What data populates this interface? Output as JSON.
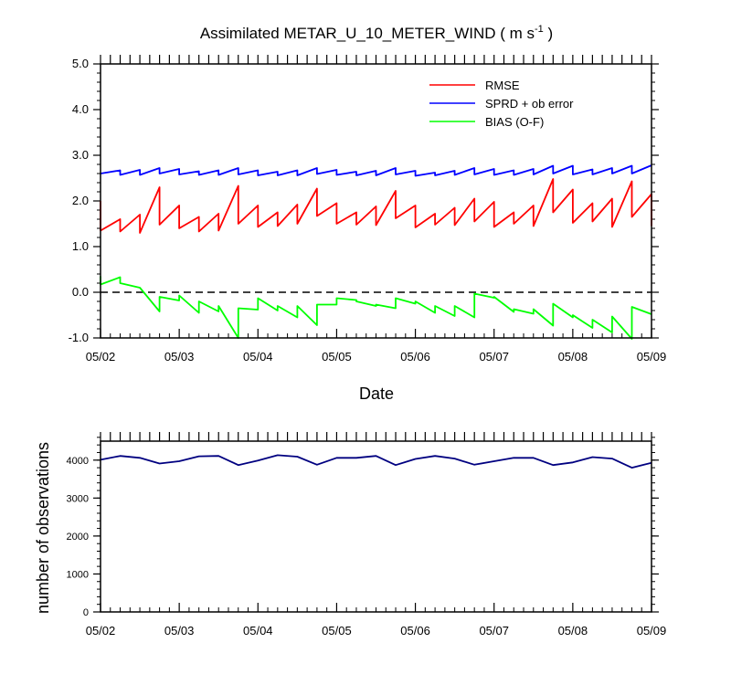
{
  "chart_data": [
    {
      "type": "line",
      "title": "Assimilated METAR_U_10_METER_WIND ( m s",
      "title_sup": "-1",
      "title_close": " )",
      "xlabel": "Date",
      "ylabel": "",
      "ylim": [
        -1.0,
        5.0
      ],
      "yticks": [
        -1.0,
        0.0,
        1.0,
        2.0,
        3.0,
        4.0,
        5.0
      ],
      "ytick_labels": [
        "-1.0",
        "0.0",
        "1.0",
        "2.0",
        "3.0",
        "4.0",
        "5.0"
      ],
      "xlim": [
        0,
        7
      ],
      "xticks": [
        0,
        1,
        2,
        3,
        4,
        5,
        6,
        7
      ],
      "xtick_labels": [
        "05/02",
        "05/03",
        "05/04",
        "05/05",
        "05/06",
        "05/07",
        "05/08",
        "05/09"
      ],
      "zero_line": true,
      "legend": {
        "placement": "top-right"
      },
      "series": [
        {
          "name": "RMSE",
          "color": "#ff0000",
          "points": [
            [
              0,
              2.0
            ],
            [
              0,
              1.35
            ],
            [
              0.25,
              1.6
            ],
            [
              0.25,
              1.33
            ],
            [
              0.5,
              1.7
            ],
            [
              0.5,
              1.3
            ],
            [
              0.75,
              2.3
            ],
            [
              0.75,
              1.48
            ],
            [
              1,
              1.9
            ],
            [
              1,
              1.4
            ],
            [
              1.25,
              1.65
            ],
            [
              1.25,
              1.33
            ],
            [
              1.5,
              1.72
            ],
            [
              1.5,
              1.35
            ],
            [
              1.75,
              2.33
            ],
            [
              1.75,
              1.5
            ],
            [
              2,
              1.9
            ],
            [
              2,
              1.43
            ],
            [
              2.25,
              1.75
            ],
            [
              2.25,
              1.45
            ],
            [
              2.5,
              1.92
            ],
            [
              2.5,
              1.5
            ],
            [
              2.75,
              2.27
            ],
            [
              2.75,
              1.67
            ],
            [
              3,
              1.95
            ],
            [
              3,
              1.5
            ],
            [
              3.25,
              1.75
            ],
            [
              3.25,
              1.48
            ],
            [
              3.5,
              1.88
            ],
            [
              3.5,
              1.47
            ],
            [
              3.75,
              2.22
            ],
            [
              3.75,
              1.62
            ],
            [
              4,
              1.9
            ],
            [
              4,
              1.42
            ],
            [
              4.25,
              1.72
            ],
            [
              4.25,
              1.48
            ],
            [
              4.5,
              1.85
            ],
            [
              4.5,
              1.47
            ],
            [
              4.75,
              2.05
            ],
            [
              4.75,
              1.55
            ],
            [
              5,
              1.98
            ],
            [
              5,
              1.43
            ],
            [
              5.25,
              1.75
            ],
            [
              5.25,
              1.5
            ],
            [
              5.5,
              1.9
            ],
            [
              5.5,
              1.45
            ],
            [
              5.75,
              2.48
            ],
            [
              5.75,
              1.75
            ],
            [
              6,
              2.25
            ],
            [
              6,
              1.52
            ],
            [
              6.25,
              1.95
            ],
            [
              6.25,
              1.55
            ],
            [
              6.5,
              2.05
            ],
            [
              6.5,
              1.43
            ],
            [
              6.75,
              2.43
            ],
            [
              6.75,
              1.65
            ],
            [
              7,
              2.15
            ],
            [
              7,
              1.45
            ]
          ]
        },
        {
          "name": "SPRD + ob error",
          "color": "#0000ff",
          "points": [
            [
              0,
              2.6
            ],
            [
              0.25,
              2.67
            ],
            [
              0.25,
              2.57
            ],
            [
              0.5,
              2.68
            ],
            [
              0.5,
              2.57
            ],
            [
              0.75,
              2.72
            ],
            [
              0.75,
              2.6
            ],
            [
              1,
              2.7
            ],
            [
              1,
              2.58
            ],
            [
              1.25,
              2.65
            ],
            [
              1.25,
              2.57
            ],
            [
              1.5,
              2.67
            ],
            [
              1.5,
              2.57
            ],
            [
              1.75,
              2.72
            ],
            [
              1.75,
              2.58
            ],
            [
              2,
              2.67
            ],
            [
              2,
              2.56
            ],
            [
              2.25,
              2.64
            ],
            [
              2.25,
              2.56
            ],
            [
              2.5,
              2.67
            ],
            [
              2.5,
              2.56
            ],
            [
              2.75,
              2.72
            ],
            [
              2.75,
              2.59
            ],
            [
              3,
              2.68
            ],
            [
              3,
              2.57
            ],
            [
              3.25,
              2.64
            ],
            [
              3.25,
              2.56
            ],
            [
              3.5,
              2.66
            ],
            [
              3.5,
              2.56
            ],
            [
              3.75,
              2.72
            ],
            [
              3.75,
              2.58
            ],
            [
              4,
              2.66
            ],
            [
              4,
              2.55
            ],
            [
              4.25,
              2.62
            ],
            [
              4.25,
              2.56
            ],
            [
              4.5,
              2.66
            ],
            [
              4.5,
              2.57
            ],
            [
              4.75,
              2.72
            ],
            [
              4.75,
              2.58
            ],
            [
              5,
              2.7
            ],
            [
              5,
              2.57
            ],
            [
              5.25,
              2.67
            ],
            [
              5.25,
              2.57
            ],
            [
              5.5,
              2.7
            ],
            [
              5.5,
              2.58
            ],
            [
              5.75,
              2.77
            ],
            [
              5.75,
              2.6
            ],
            [
              6,
              2.77
            ],
            [
              6,
              2.58
            ],
            [
              6.25,
              2.69
            ],
            [
              6.25,
              2.58
            ],
            [
              6.5,
              2.72
            ],
            [
              6.5,
              2.6
            ],
            [
              6.75,
              2.77
            ],
            [
              6.75,
              2.6
            ],
            [
              7,
              2.78
            ]
          ]
        },
        {
          "name": "BIAS (O-F)",
          "color": "#00ff00",
          "points": [
            [
              0,
              0.35
            ],
            [
              0,
              0.17
            ],
            [
              0.25,
              0.33
            ],
            [
              0.25,
              0.2
            ],
            [
              0.5,
              0.1
            ],
            [
              0.75,
              -0.42
            ],
            [
              0.75,
              -0.1
            ],
            [
              1,
              -0.18
            ],
            [
              1,
              -0.07
            ],
            [
              1.25,
              -0.45
            ],
            [
              1.25,
              -0.2
            ],
            [
              1.5,
              -0.42
            ],
            [
              1.5,
              -0.3
            ],
            [
              1.75,
              -1.0
            ],
            [
              1.75,
              -0.35
            ],
            [
              2,
              -0.38
            ],
            [
              2,
              -0.13
            ],
            [
              2.25,
              -0.4
            ],
            [
              2.25,
              -0.3
            ],
            [
              2.5,
              -0.55
            ],
            [
              2.5,
              -0.3
            ],
            [
              2.75,
              -0.72
            ],
            [
              2.75,
              -0.27
            ],
            [
              3,
              -0.27
            ],
            [
              3,
              -0.13
            ],
            [
              3.25,
              -0.17
            ],
            [
              3.25,
              -0.2
            ],
            [
              3.5,
              -0.3
            ],
            [
              3.5,
              -0.27
            ],
            [
              3.75,
              -0.35
            ],
            [
              3.75,
              -0.13
            ],
            [
              4,
              -0.25
            ],
            [
              4,
              -0.2
            ],
            [
              4.25,
              -0.45
            ],
            [
              4.25,
              -0.3
            ],
            [
              4.5,
              -0.52
            ],
            [
              4.5,
              -0.3
            ],
            [
              4.75,
              -0.55
            ],
            [
              4.75,
              -0.03
            ],
            [
              5,
              -0.12
            ],
            [
              5,
              -0.1
            ],
            [
              5.25,
              -0.43
            ],
            [
              5.25,
              -0.37
            ],
            [
              5.5,
              -0.47
            ],
            [
              5.5,
              -0.37
            ],
            [
              5.75,
              -0.73
            ],
            [
              5.75,
              -0.25
            ],
            [
              6,
              -0.55
            ],
            [
              6,
              -0.5
            ],
            [
              6.25,
              -0.78
            ],
            [
              6.25,
              -0.6
            ],
            [
              6.5,
              -0.88
            ],
            [
              6.5,
              -0.53
            ],
            [
              6.75,
              -1.02
            ],
            [
              6.75,
              -0.32
            ],
            [
              7,
              -0.48
            ]
          ]
        }
      ]
    },
    {
      "type": "line",
      "title": "",
      "xlabel": "",
      "ylabel": "number of observations",
      "ylim": [
        0,
        4500
      ],
      "yticks": [
        0,
        1000,
        2000,
        3000,
        4000
      ],
      "ytick_labels": [
        "0",
        "1000",
        "2000",
        "3000",
        "4000"
      ],
      "xlim": [
        0,
        7
      ],
      "xticks": [
        0,
        1,
        2,
        3,
        4,
        5,
        6,
        7
      ],
      "xtick_labels": [
        "05/02",
        "05/03",
        "05/04",
        "05/05",
        "05/06",
        "05/07",
        "05/08",
        "05/09"
      ],
      "series": [
        {
          "color": "#000080",
          "points": [
            [
              0,
              4010
            ],
            [
              0.25,
              4110
            ],
            [
              0.5,
              4060
            ],
            [
              0.75,
              3910
            ],
            [
              1,
              3970
            ],
            [
              1.25,
              4100
            ],
            [
              1.5,
              4110
            ],
            [
              1.75,
              3870
            ],
            [
              2,
              3990
            ],
            [
              2.25,
              4130
            ],
            [
              2.5,
              4090
            ],
            [
              2.75,
              3880
            ],
            [
              3,
              4060
            ],
            [
              3.25,
              4060
            ],
            [
              3.5,
              4110
            ],
            [
              3.75,
              3870
            ],
            [
              4,
              4030
            ],
            [
              4.25,
              4110
            ],
            [
              4.5,
              4040
            ],
            [
              4.75,
              3880
            ],
            [
              5,
              3970
            ],
            [
              5.25,
              4060
            ],
            [
              5.5,
              4060
            ],
            [
              5.75,
              3870
            ],
            [
              6,
              3940
            ],
            [
              6.25,
              4080
            ],
            [
              6.5,
              4040
            ],
            [
              6.75,
              3800
            ],
            [
              7,
              3930
            ]
          ]
        }
      ]
    }
  ]
}
